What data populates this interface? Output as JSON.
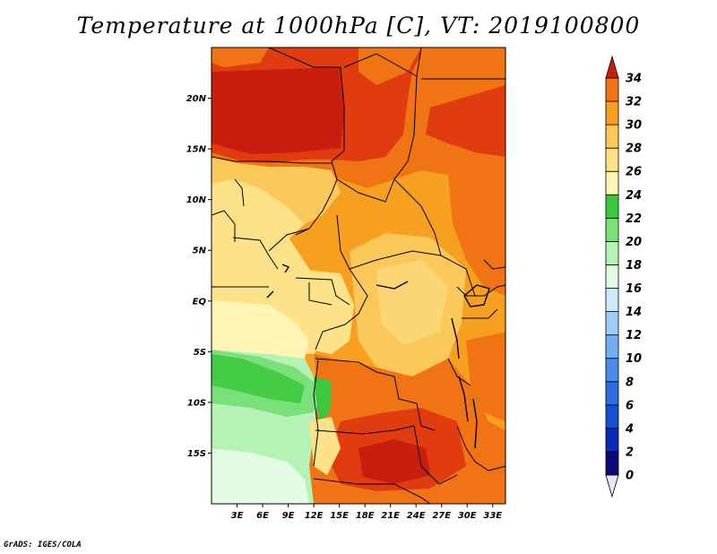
{
  "title": "Temperature at 1000hPa [C], VT: 2019100800",
  "credit": "GrADS: IGES/COLA",
  "map": {
    "lat_ticks": [
      "20N",
      "15N",
      "10N",
      "5N",
      "EQ",
      "5S",
      "10S",
      "15S"
    ],
    "lon_ticks": [
      "3E",
      "6E",
      "9E",
      "12E",
      "15E",
      "18E",
      "21E",
      "24E",
      "27E",
      "30E",
      "33E"
    ],
    "lat_range": [
      -20,
      25
    ],
    "lon_range": [
      0,
      34.5
    ]
  },
  "colorbar": {
    "labels": [
      "0",
      "2",
      "4",
      "6",
      "8",
      "10",
      "12",
      "14",
      "16",
      "18",
      "20",
      "22",
      "24",
      "26",
      "28",
      "30",
      "32",
      "34"
    ],
    "colors": [
      "#0a0a78",
      "#0a2ab8",
      "#1450d2",
      "#2a6ee0",
      "#4a8ce8",
      "#74aef0",
      "#a0cdf5",
      "#cfe8fa",
      "#e2fbe2",
      "#b6f2b6",
      "#7ae07a",
      "#3cc83c",
      "#fff5b4",
      "#fde28a",
      "#fbc85a",
      "#f7a020",
      "#f07414",
      "#e03c10",
      "#c81e10"
    ],
    "under_color": "#e8e8fa"
  }
}
